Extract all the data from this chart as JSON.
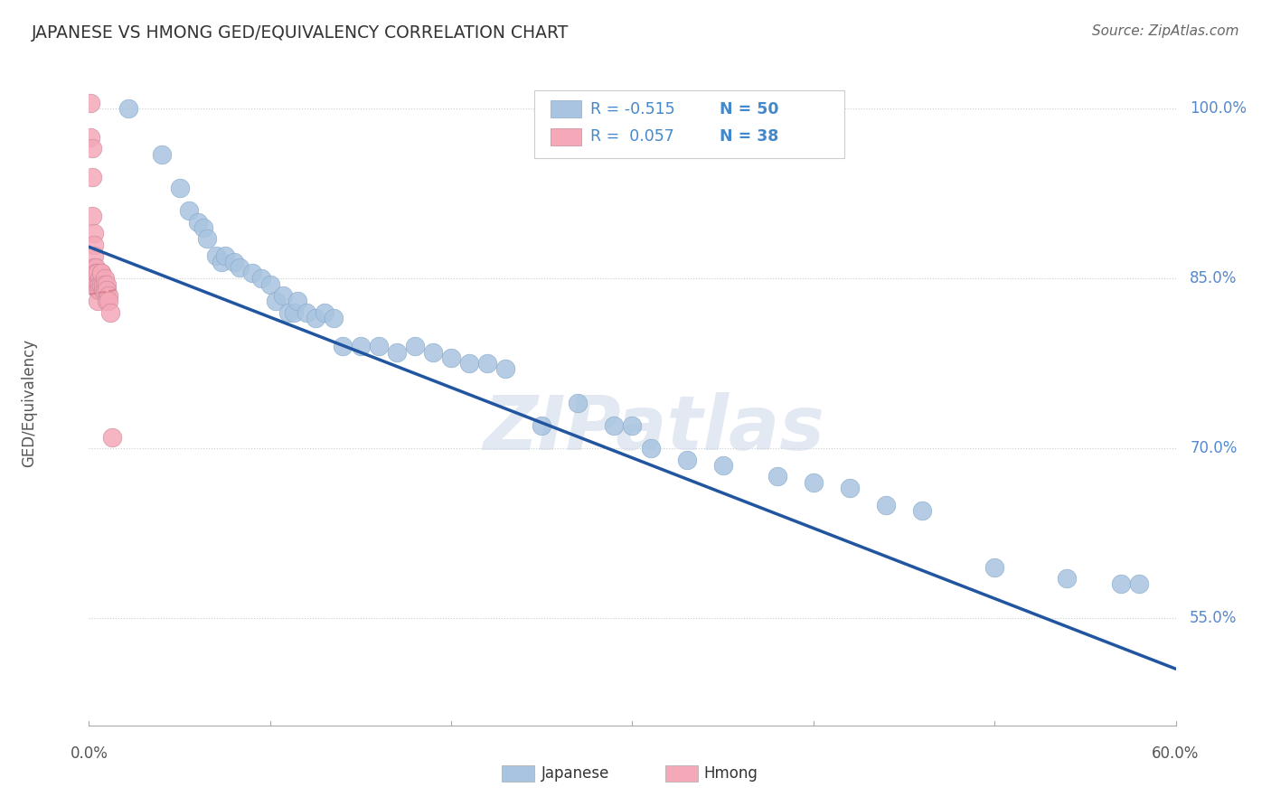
{
  "title": "JAPANESE VS HMONG GED/EQUIVALENCY CORRELATION CHART",
  "source": "Source: ZipAtlas.com",
  "ylabel": "GED/Equivalency",
  "watermark": "ZIPatlas",
  "xlim": [
    0.0,
    0.6
  ],
  "ylim": [
    0.455,
    1.025
  ],
  "yticks": [
    1.0,
    0.85,
    0.7,
    0.55
  ],
  "ytick_labels": [
    "100.0%",
    "85.0%",
    "70.0%",
    "55.0%"
  ],
  "xticks": [
    0.0,
    0.1,
    0.2,
    0.3,
    0.4,
    0.5,
    0.6
  ],
  "japanese_R": -0.515,
  "japanese_N": 50,
  "hmong_R": 0.057,
  "hmong_N": 38,
  "japanese_color": "#a8c4e0",
  "hmong_color": "#f4a8b8",
  "japanese_line_color": "#2255a0",
  "hmong_line_color": "#d07080",
  "japanese_scatter_x": [
    0.022,
    0.04,
    0.05,
    0.055,
    0.06,
    0.063,
    0.065,
    0.07,
    0.073,
    0.075,
    0.08,
    0.083,
    0.09,
    0.095,
    0.1,
    0.103,
    0.107,
    0.11,
    0.113,
    0.115,
    0.12,
    0.125,
    0.13,
    0.135,
    0.14,
    0.15,
    0.16,
    0.17,
    0.18,
    0.19,
    0.2,
    0.21,
    0.22,
    0.23,
    0.25,
    0.27,
    0.29,
    0.31,
    0.33,
    0.35,
    0.38,
    0.4,
    0.42,
    0.44,
    0.46,
    0.3,
    0.5,
    0.54,
    0.57,
    0.58
  ],
  "japanese_scatter_y": [
    1.0,
    0.96,
    0.93,
    0.91,
    0.9,
    0.895,
    0.885,
    0.87,
    0.865,
    0.87,
    0.865,
    0.86,
    0.855,
    0.85,
    0.845,
    0.83,
    0.835,
    0.82,
    0.82,
    0.83,
    0.82,
    0.815,
    0.82,
    0.815,
    0.79,
    0.79,
    0.79,
    0.785,
    0.79,
    0.785,
    0.78,
    0.775,
    0.775,
    0.77,
    0.72,
    0.74,
    0.72,
    0.7,
    0.69,
    0.685,
    0.675,
    0.67,
    0.665,
    0.65,
    0.645,
    0.72,
    0.595,
    0.585,
    0.58,
    0.58
  ],
  "hmong_scatter_x": [
    0.001,
    0.001,
    0.002,
    0.002,
    0.002,
    0.003,
    0.003,
    0.003,
    0.003,
    0.004,
    0.004,
    0.004,
    0.004,
    0.005,
    0.005,
    0.005,
    0.005,
    0.006,
    0.006,
    0.006,
    0.006,
    0.007,
    0.007,
    0.007,
    0.007,
    0.008,
    0.008,
    0.008,
    0.009,
    0.009,
    0.009,
    0.01,
    0.01,
    0.01,
    0.011,
    0.011,
    0.012,
    0.013
  ],
  "hmong_scatter_y": [
    1.005,
    0.975,
    0.965,
    0.94,
    0.905,
    0.89,
    0.88,
    0.87,
    0.86,
    0.86,
    0.855,
    0.855,
    0.845,
    0.855,
    0.845,
    0.84,
    0.83,
    0.85,
    0.845,
    0.84,
    0.845,
    0.855,
    0.845,
    0.855,
    0.845,
    0.845,
    0.84,
    0.845,
    0.85,
    0.845,
    0.84,
    0.845,
    0.84,
    0.83,
    0.835,
    0.83,
    0.82,
    0.71
  ],
  "japanese_trendline_x": [
    0.0,
    0.6
  ],
  "japanese_trendline_y": [
    0.878,
    0.505
  ],
  "hmong_trendline_x": [
    0.0,
    0.015
  ],
  "hmong_trendline_y": [
    0.836,
    0.84
  ],
  "legend_color": "#4488cc",
  "right_label_color": "#5588cc",
  "title_color": "#333333",
  "source_color": "#666666",
  "watermark_color": "#ccd8e8",
  "grid_color": "#cccccc",
  "spine_color": "#aaaaaa"
}
